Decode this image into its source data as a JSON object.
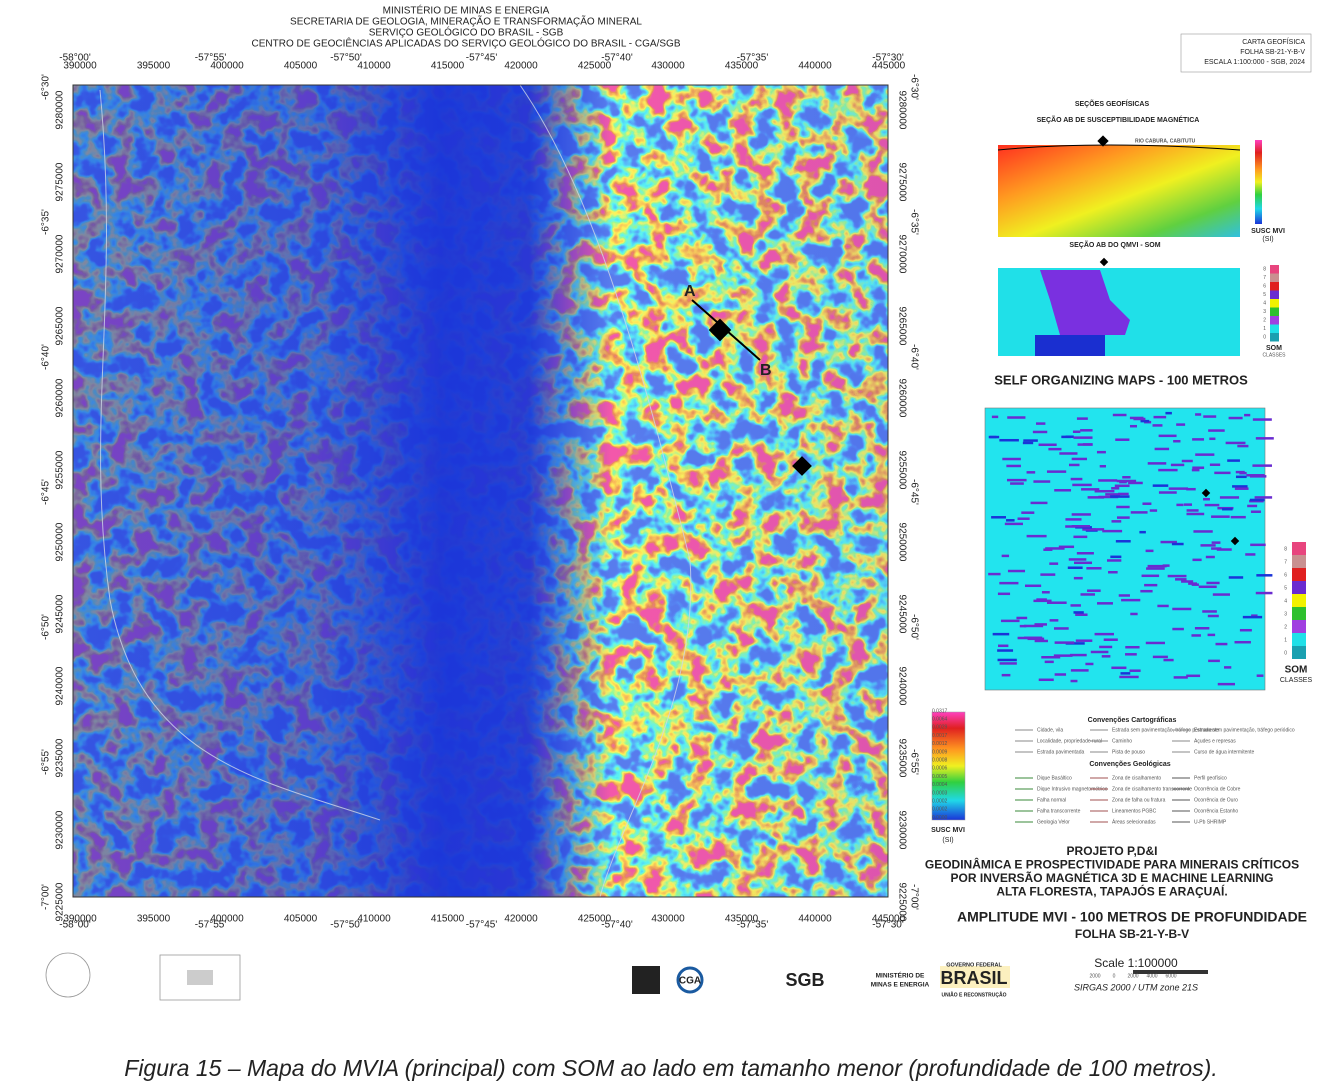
{
  "header": {
    "lines": [
      "MINISTÉRIO DE MINAS E ENERGIA",
      "SECRETARIA DE GEOLOGIA, MINERAÇÃO E TRANSFORMAÇÃO MINERAL",
      "SERVIÇO GEOLÓGICO DO BRASIL - SGB",
      "CENTRO DE GEOCIÊNCIAS APLICADAS DO SERVIÇO GEOLÓGICO DO BRASIL  - CGA/SGB"
    ]
  },
  "sheet_box": [
    "CARTA GEOFÍSICA",
    "FOLHA SB-21-Y-B-V",
    "ESCALA 1:100:000 - SGB, 2024"
  ],
  "map": {
    "easting": [
      "390000",
      "395000",
      "400000",
      "405000",
      "410000",
      "415000",
      "420000",
      "425000",
      "430000",
      "435000",
      "440000",
      "445000"
    ],
    "longitude": [
      "-58°00'",
      "-57°55'",
      "-57°50'",
      "-57°45'",
      "-57°40'",
      "-57°35'",
      "-57°30'"
    ],
    "northing": [
      "9280000",
      "9275000",
      "9270000",
      "9265000",
      "9260000",
      "9255000",
      "9250000",
      "9245000",
      "9240000",
      "9235000",
      "9230000",
      "9225000"
    ],
    "latitude": [
      "-6°30'",
      "-6°35'",
      "-6°40'",
      "-6°45'",
      "-6°50'",
      "-6°55'",
      "-7°00'"
    ],
    "section_points": [
      "A",
      "B"
    ]
  },
  "sections": {
    "title": "SEÇÕES GEOFÍSICAS",
    "susc_title": "SEÇÃO AB DE SUSCEPTIBILIDADE MAGNÉTICA",
    "susc_place": "RIO CABURA, CABITUTU",
    "susc_unit": [
      "SUSC MVI",
      "(SI)"
    ],
    "som_title": "SEÇÃO AB DO QMVI - SOM",
    "som_unit": [
      "SOM",
      "CLASSES"
    ]
  },
  "som_map": {
    "title": "SELF ORGANIZING MAPS - 100 METROS",
    "unit": [
      "SOM",
      "CLASSES"
    ]
  },
  "som_classes": {
    "labels": [
      "8",
      "7",
      "6",
      "5",
      "4",
      "3",
      "2",
      "1",
      "0"
    ],
    "colors": [
      "#e8457e",
      "#c99090",
      "#e02020",
      "#6a2bd0",
      "#f2f200",
      "#2ec02e",
      "#a040e0",
      "#20e0e8",
      "#1aa0b0"
    ]
  },
  "colorbar": {
    "labels": [
      "0.0317",
      "0.0064",
      "0.0029",
      "0.0017",
      "0.0012",
      "0.0009",
      "0.0008",
      "0.0006",
      "0.0005",
      "0.0004",
      "0.0003",
      "0.0002",
      "0.0002",
      "0.0000"
    ],
    "unit": [
      "SUSC MVI",
      "(SI)"
    ]
  },
  "legend": {
    "cartographic_title": "Convenções Cartográficas",
    "cartographic_items": [
      "Cidade, vila",
      "Localidade, propriedade rural",
      "Estrada pavimentada",
      "Estrada sem pavimentação, tráfego permanente",
      "Caminho",
      "Pista de pouso",
      "Estrada sem pavimentação, tráfego periódico",
      "Açudes e represas",
      "Curso de água intermitente"
    ],
    "geological_title": "Convenções Geológicas",
    "geological_items": [
      "Dique Basáltico",
      "Dique Intrusivo magnetométrico",
      "Falha normal",
      "Falha transcorrente",
      "Geologia Velor",
      "Zona de cisalhamento",
      "Zona de cisalhamento transcorrente",
      "Zona de falha ou fratura",
      "Lineamentos PGBC",
      "Áreas selecionadas",
      "Perfil geofísico",
      "Ocorrência de Cobre",
      "Ocorrência de Ouro",
      "Ocorrência Estanho",
      "U-Pb SHRIMP"
    ]
  },
  "project": {
    "lines": [
      "PROJETO P,D&I",
      "GEODINÂMICA E PROSPECTIVIDADE PARA MINERAIS CRÍTICOS",
      "POR INVERSÃO MAGNÉTICA 3D E MACHINE LEARNING",
      "ALTA FLORESTA, TAPAJÓS E ARAÇUAÍ."
    ],
    "map_title": "AMPLITUDE MVI - 100 METROS DE PROFUNDIDADE",
    "sheet": "FOLHA SB-21-Y-B-V"
  },
  "scale": {
    "label": "Scale 1:100000",
    "ticks": [
      "2000",
      "0",
      "2000",
      "4000",
      "6000"
    ],
    "projection": "SIRGAS 2000 / UTM zone 21S"
  },
  "logos": {
    "cga": "CGA",
    "sgb": "SGB",
    "ministry": [
      "MINISTÉRIO DE",
      "MINAS E ENERGIA"
    ],
    "gov": [
      "GOVERNO FEDERAL",
      "BRASIL",
      "UNIÃO E RECONSTRUÇÃO"
    ]
  },
  "caption": "Figura 15 – Mapa do MVIA (principal) com SOM ao lado em tamanho menor (profundidade de 100 metros)."
}
